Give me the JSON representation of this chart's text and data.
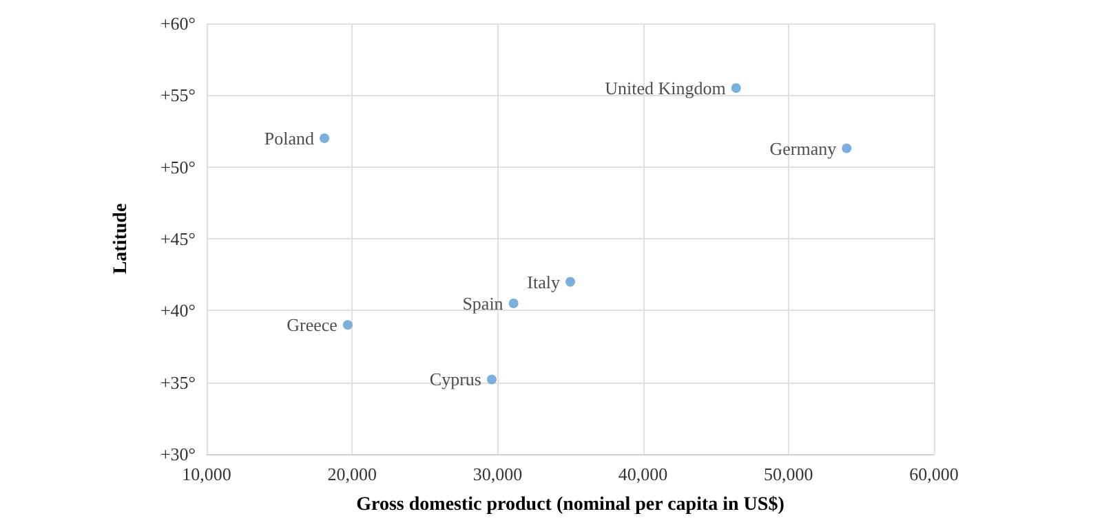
{
  "chart_data": {
    "type": "scatter",
    "xlabel": "Gross domestic product (nominal per capita in US$)",
    "ylabel": "Latitude",
    "series": [
      {
        "name": "United Kingdom",
        "color": "#5b9bd5",
        "x": [
          46400
        ],
        "values": [
          55.5
        ]
      },
      {
        "name": "Germany",
        "color": "#5b9bd5",
        "x": [
          54000
        ],
        "values": [
          51.3
        ]
      },
      {
        "name": "Poland",
        "color": "#5b9bd5",
        "x": [
          18100
        ],
        "values": [
          52.0
        ]
      },
      {
        "name": "Italy",
        "color": "#5b9bd5",
        "x": [
          35000
        ],
        "values": [
          42.0
        ]
      },
      {
        "name": "Spain",
        "color": "#5b9bd5",
        "x": [
          31100
        ],
        "values": [
          40.5
        ]
      },
      {
        "name": "Greece",
        "color": "#5b9bd5",
        "x": [
          19700
        ],
        "values": [
          39.0
        ]
      },
      {
        "name": "Cyprus",
        "color": "#5b9bd5",
        "x": [
          29600
        ],
        "values": [
          35.2
        ]
      }
    ],
    "xlim": [
      10000,
      60000
    ],
    "xticks": [
      {
        "value": 10000,
        "label": "10,000"
      },
      {
        "value": 20000,
        "label": "20,000"
      },
      {
        "value": 30000,
        "label": "30,000"
      },
      {
        "value": 40000,
        "label": "40,000"
      },
      {
        "value": 50000,
        "label": "50,000"
      },
      {
        "value": 60000,
        "label": "60,000"
      }
    ],
    "ylim": [
      30,
      60
    ],
    "yticks": [
      {
        "value": 30,
        "label": "+30°"
      },
      {
        "value": 35,
        "label": "+35°"
      },
      {
        "value": 40,
        "label": "+40°"
      },
      {
        "value": 45,
        "label": "+45°"
      },
      {
        "value": 50,
        "label": "+50°"
      },
      {
        "value": 55,
        "label": "+55°"
      },
      {
        "value": 60,
        "label": "+60°"
      }
    ],
    "grid": true,
    "legend": false,
    "marker": "circle"
  }
}
